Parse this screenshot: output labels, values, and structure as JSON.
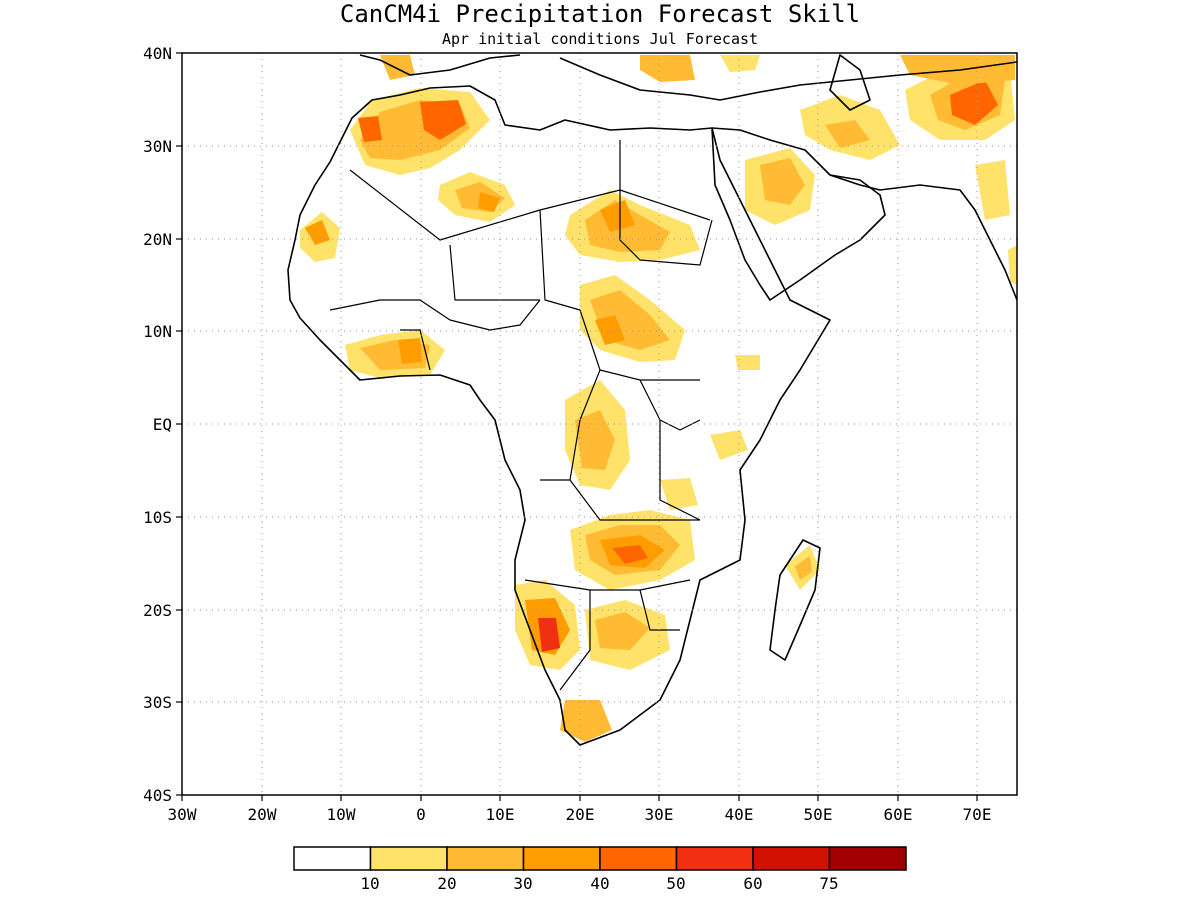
{
  "title": "CanCM4i Precipitation Forecast Skill",
  "subtitle": "Apr initial conditions  Jul Forecast",
  "axes": {
    "lat_labels": [
      "40N",
      "30N",
      "20N",
      "10N",
      "EQ",
      "10S",
      "20S",
      "30S",
      "40S"
    ],
    "lon_labels": [
      "30W",
      "20W",
      "10W",
      "0",
      "10E",
      "20E",
      "30E",
      "40E",
      "50E",
      "60E",
      "70E"
    ]
  },
  "colorbar": {
    "levels": [
      "10",
      "20",
      "30",
      "40",
      "50",
      "60",
      "75"
    ],
    "colors": [
      "#ffffff",
      "#ffe26a",
      "#ffbb33",
      "#ff9d00",
      "#ff6600",
      "#f03010",
      "#d01000",
      "#a00000"
    ]
  }
}
